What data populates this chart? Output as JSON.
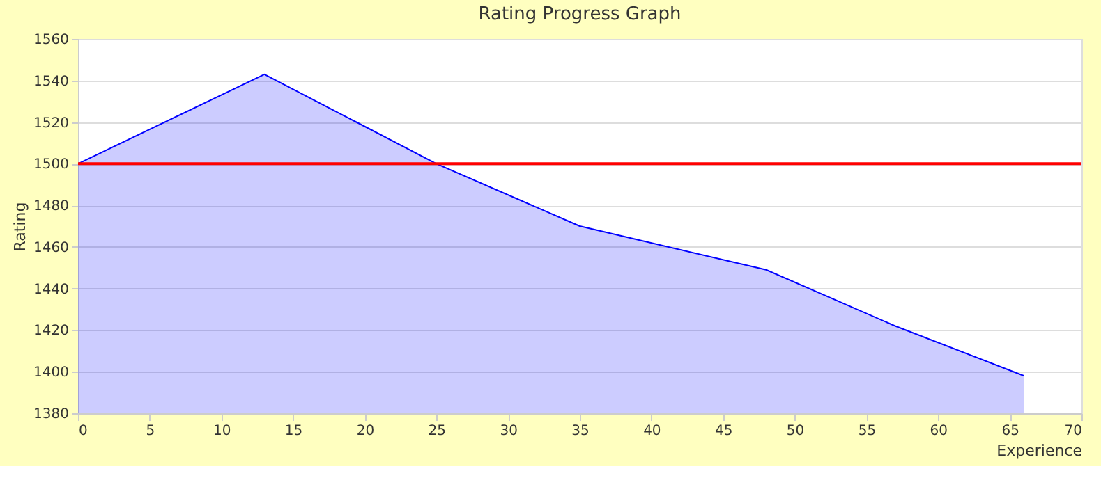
{
  "chart_data": {
    "type": "area",
    "title": "Rating Progress Graph",
    "xlabel": "Experience",
    "ylabel": "Rating",
    "x": [
      0,
      13,
      25,
      35,
      48,
      57,
      66
    ],
    "series": [
      {
        "color": "#0000ff",
        "values": [
          1500,
          1543,
          1500,
          1470,
          1449,
          1422,
          1398
        ]
      }
    ],
    "xlim": [
      0,
      70
    ],
    "xticks": [
      0,
      5,
      10,
      15,
      20,
      25,
      30,
      35,
      40,
      45,
      50,
      55,
      60,
      65,
      70
    ],
    "ylim": [
      1380,
      1560
    ],
    "yticks": [
      1380,
      1400,
      1420,
      1440,
      1460,
      1480,
      1500,
      1520,
      1540,
      1560
    ],
    "ref_lines": [
      {
        "axis": "y",
        "value": 1500,
        "color": "#ff0000"
      }
    ],
    "grid": "y"
  }
}
